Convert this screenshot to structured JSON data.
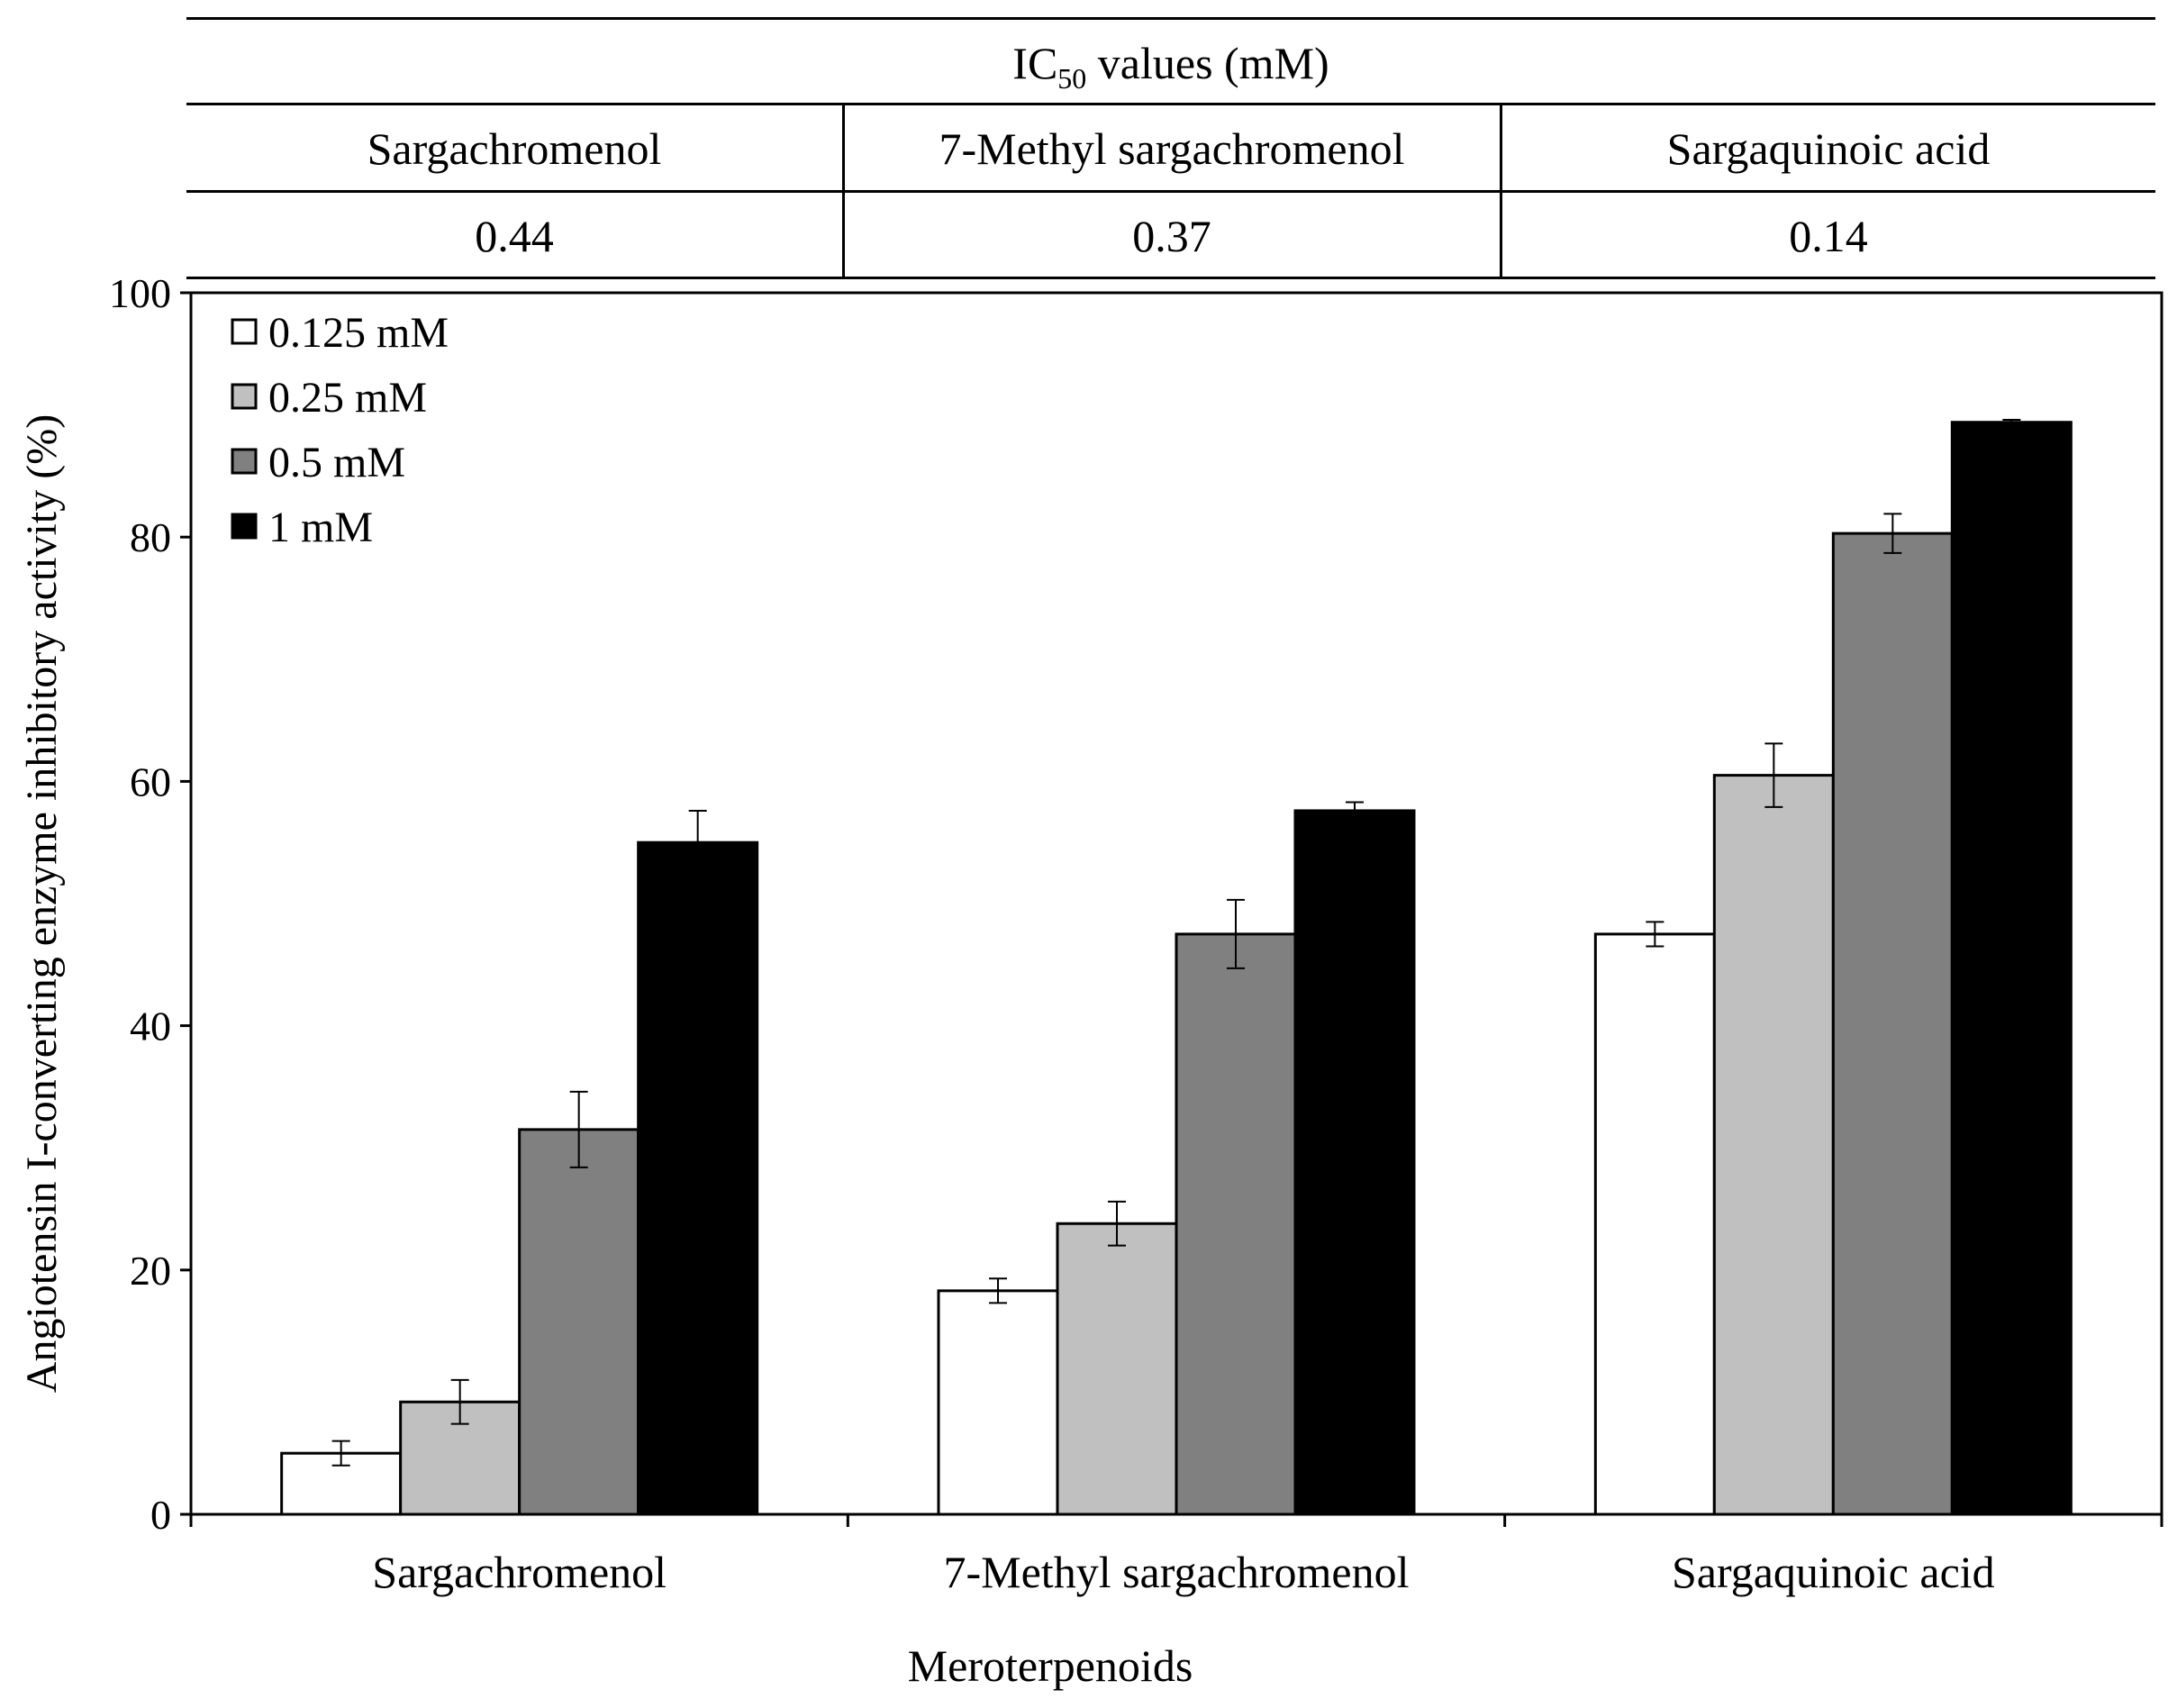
{
  "ic50_table": {
    "title_main": "IC",
    "title_sub": "50",
    "title_rest": " values (mM)",
    "compounds": [
      "Sargachromenol",
      "7-Methyl sargachromenol",
      "Sargaquinoic acid"
    ],
    "values": [
      "0.44",
      "0.37",
      "0.14"
    ]
  },
  "chart_data": {
    "type": "bar",
    "title": "",
    "categories": [
      "Sargachromenol",
      "7-Methyl sargachromenol",
      "Sargaquinoic acid"
    ],
    "series": [
      {
        "name": "0.125 mM",
        "values": [
          5.0,
          18.3,
          47.5
        ],
        "errors": [
          1.0,
          1.0,
          1.0
        ],
        "color": "#ffffff"
      },
      {
        "name": "0.25 mM",
        "values": [
          9.2,
          23.8,
          60.5
        ],
        "errors": [
          1.8,
          1.8,
          2.6
        ],
        "color": "#c0c0c0"
      },
      {
        "name": "0.5 mM",
        "values": [
          31.5,
          47.5,
          80.3
        ],
        "errors": [
          3.1,
          2.8,
          1.6
        ],
        "color": "#808080"
      },
      {
        "name": "1 mM",
        "values": [
          55.0,
          57.6,
          89.4
        ],
        "errors": [
          2.6,
          0.7,
          0.2
        ],
        "color": "#000000"
      }
    ],
    "xlabel": "Meroterpenoids",
    "ylabel": "Angiotensin I-converting enzyme inhibitory activity (%)",
    "ylim": [
      0,
      100
    ],
    "yticks": [
      "0",
      "20",
      "40",
      "60",
      "80",
      "100"
    ],
    "legend_position": "top-left"
  }
}
